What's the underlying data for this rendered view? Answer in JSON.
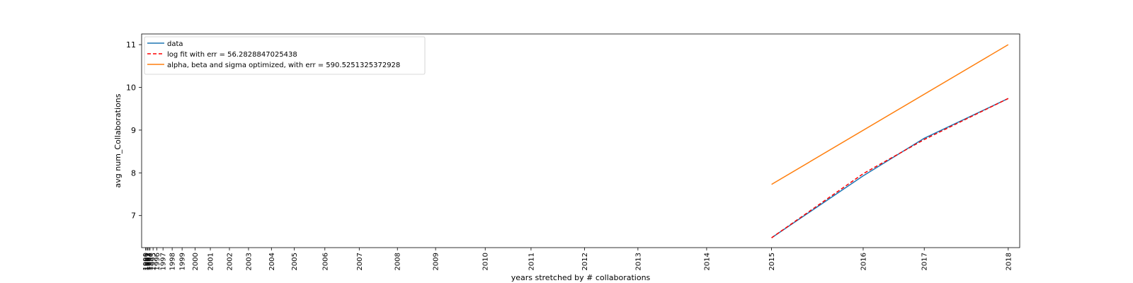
{
  "chart_data": {
    "type": "line",
    "title": "",
    "xlabel": "years stretched by # collaborations",
    "ylabel": "avg num_Collaborations",
    "x_ticks": [
      {
        "label": "1990",
        "x": 0.0
      },
      {
        "label": "1991",
        "x": 0.15
      },
      {
        "label": "1992",
        "x": 0.3
      },
      {
        "label": "1993",
        "x": 0.45
      },
      {
        "label": "1994",
        "x": 0.6
      },
      {
        "label": "1995",
        "x": 1.0
      },
      {
        "label": "1996",
        "x": 1.5
      },
      {
        "label": "1997",
        "x": 2.3
      },
      {
        "label": "1998",
        "x": 3.5
      },
      {
        "label": "1999",
        "x": 4.8
      },
      {
        "label": "2000",
        "x": 6.5
      },
      {
        "label": "2001",
        "x": 8.5
      },
      {
        "label": "2002",
        "x": 11.0
      },
      {
        "label": "2003",
        "x": 13.5
      },
      {
        "label": "2004",
        "x": 16.5
      },
      {
        "label": "2005",
        "x": 19.5
      },
      {
        "label": "2006",
        "x": 23.5
      },
      {
        "label": "2007",
        "x": 28.0
      },
      {
        "label": "2008",
        "x": 33.0
      },
      {
        "label": "2009",
        "x": 38.0
      },
      {
        "label": "2010",
        "x": 44.5
      },
      {
        "label": "2011",
        "x": 50.5
      },
      {
        "label": "2012",
        "x": 57.5
      },
      {
        "label": "2013",
        "x": 64.5
      },
      {
        "label": "2014",
        "x": 73.5
      },
      {
        "label": "2015",
        "x": 82.0
      },
      {
        "label": "2016",
        "x": 94.0
      },
      {
        "label": "2017",
        "x": 102.0
      },
      {
        "label": "2018",
        "x": 113.0
      }
    ],
    "xlim": [
      -0.5,
      114.5
    ],
    "ylim": [
      6.25,
      11.25
    ],
    "y_ticks": [
      7,
      8,
      9,
      10,
      11
    ],
    "series": [
      {
        "name": "data",
        "color": "#1f77b4",
        "style": "solid",
        "x": [
          82.0,
          94.0,
          102.0,
          113.0
        ],
        "y": [
          6.48,
          7.93,
          8.81,
          9.74
        ]
      },
      {
        "name": "log fit with err = 56.2828847025438",
        "color": "#ff0000",
        "style": "dashed",
        "x": [
          82.0,
          94.0,
          102.0,
          113.0
        ],
        "y": [
          6.48,
          7.98,
          8.78,
          9.74
        ]
      },
      {
        "name": "alpha, beta and sigma optimized, with err = 590.5251325372928",
        "color": "#ff7f0e",
        "style": "solid",
        "x": [
          82.0,
          113.0
        ],
        "y": [
          7.73,
          11.0
        ]
      }
    ],
    "legend_position": "top-left",
    "grid": false
  }
}
